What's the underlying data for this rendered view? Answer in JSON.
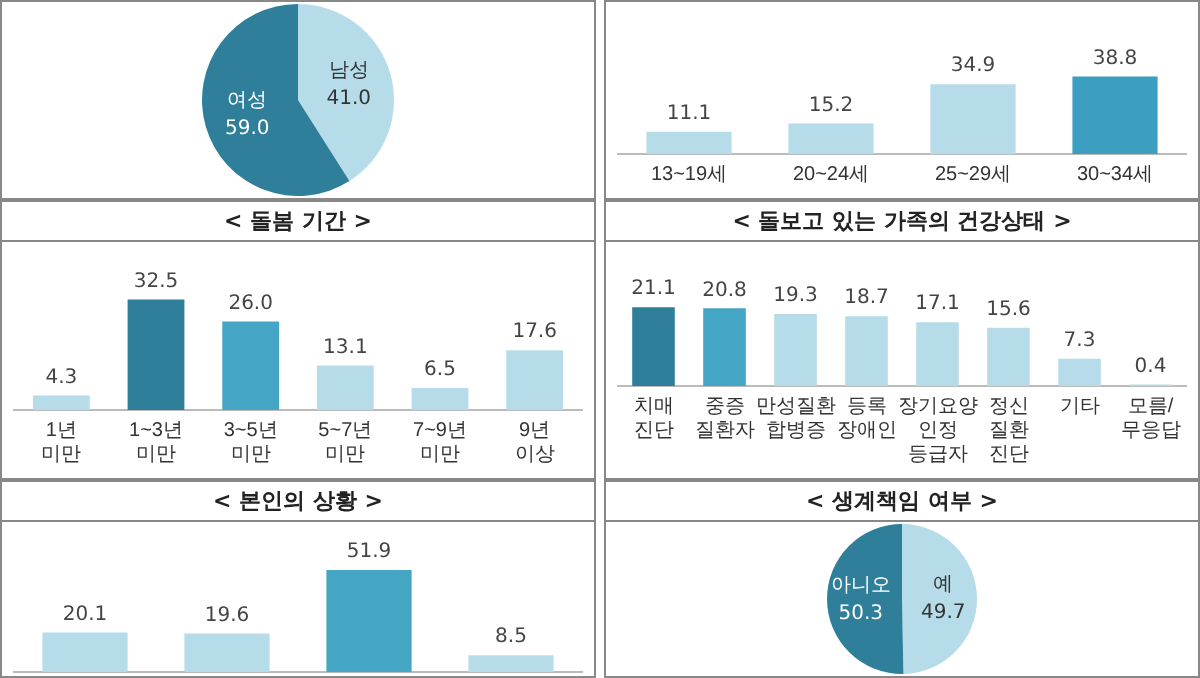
{
  "chart_data": [
    {
      "type": "pie",
      "categories": [
        "남성",
        "여성"
      ],
      "values": [
        41.0,
        59.0
      ],
      "value_labels": [
        "41.0",
        "59.0"
      ],
      "colors": [
        "#b7dce9",
        "#2f7f9b"
      ],
      "legend": false
    },
    {
      "type": "bar",
      "categories": [
        "13~19세",
        "20~24세",
        "25~29세",
        "30~34세"
      ],
      "values": [
        11.1,
        15.2,
        34.9,
        38.8
      ],
      "value_labels": [
        "11.1",
        "15.2",
        "34.9",
        "38.8"
      ],
      "colors": [
        "#b7dce9",
        "#b7dce9",
        "#b7dce9",
        "#3c9ec0"
      ],
      "tick_labels": "x",
      "grid": false,
      "legend": false
    },
    {
      "type": "bar",
      "title": "< 돌봄 기간 >",
      "categories": [
        "1년\n미만",
        "1~3년\n미만",
        "3~5년\n미만",
        "5~7년\n미만",
        "7~9년\n미만",
        "9년\n이상"
      ],
      "values": [
        4.3,
        32.5,
        26.0,
        13.1,
        6.5,
        17.6
      ],
      "value_labels": [
        "4.3",
        "32.5",
        "26.0",
        "13.1",
        "6.5",
        "17.6"
      ],
      "colors": [
        "#b7dce9",
        "#2f7f9b",
        "#45a5c5",
        "#b7dce9",
        "#b7dce9",
        "#b7dce9"
      ],
      "tick_labels": "x",
      "grid": false,
      "legend": false
    },
    {
      "type": "bar",
      "title": "< 돌보고 있는 가족의 건강상태 >",
      "categories": [
        "치매\n진단",
        "중증\n질환자",
        "만성질환\n합병증",
        "등록\n장애인",
        "장기요양\n인정\n등급자",
        "정신\n질환\n진단",
        "기타",
        "모름/\n무응답"
      ],
      "values": [
        21.1,
        20.8,
        19.3,
        18.7,
        17.1,
        15.6,
        7.3,
        0.4
      ],
      "value_labels": [
        "21.1",
        "20.8",
        "19.3",
        "18.7",
        "17.1",
        "15.6",
        "7.3",
        "0.4"
      ],
      "colors": [
        "#2f7f9b",
        "#45a5c5",
        "#b7dce9",
        "#b7dce9",
        "#b7dce9",
        "#b7dce9",
        "#b7dce9",
        "#b7dce9"
      ],
      "tick_labels": "x",
      "grid": false,
      "legend": false
    },
    {
      "type": "bar",
      "title": "< 본인의 상황 >",
      "categories": [
        null,
        null,
        null,
        null
      ],
      "values": [
        20.1,
        19.6,
        51.9,
        8.5
      ],
      "value_labels": [
        "20.1",
        "19.6",
        "51.9",
        "8.5"
      ],
      "colors": [
        "#b7dce9",
        "#b7dce9",
        "#45a5c5",
        "#b7dce9"
      ],
      "tick_labels": false,
      "grid": false,
      "legend": false
    },
    {
      "type": "pie",
      "title": "< 생계책임 여부 >",
      "categories": [
        "예",
        "아니오"
      ],
      "values": [
        49.7,
        50.3
      ],
      "value_labels": [
        "49.7",
        "50.3"
      ],
      "colors": [
        "#b7dce9",
        "#2f7f9b"
      ],
      "legend": false
    }
  ]
}
